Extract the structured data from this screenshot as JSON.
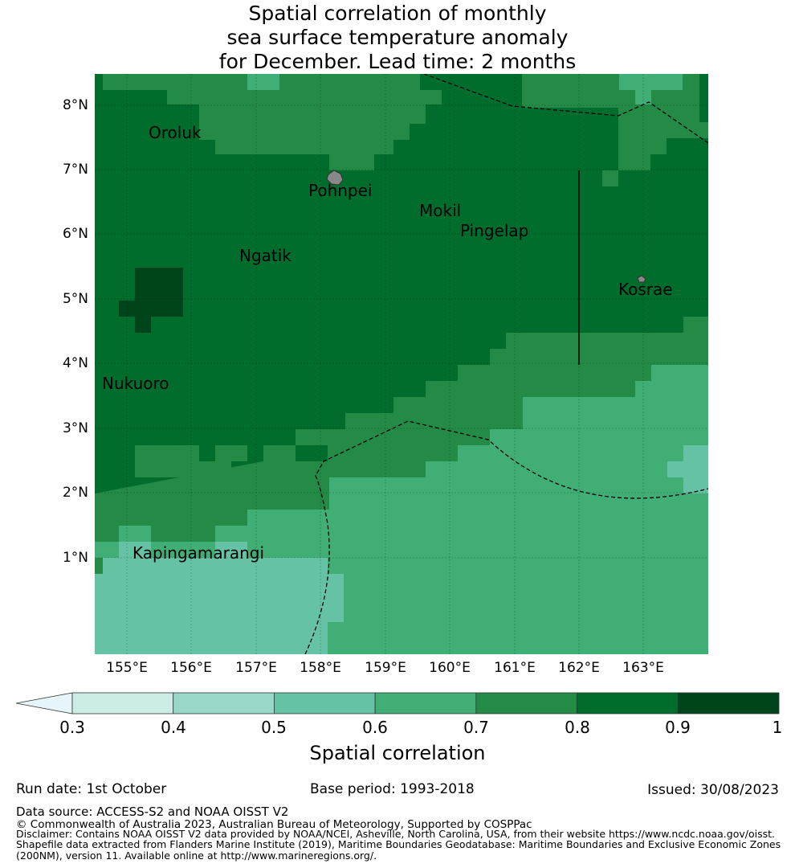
{
  "title": {
    "line1": "Spatial correlation of monthly",
    "line2": "sea surface temperature anomaly",
    "line3": " for December. Lead time: 2 months"
  },
  "axes": {
    "lat_labels": [
      "8°N",
      "7°N",
      "6°N",
      "5°N",
      "4°N",
      "3°N",
      "2°N",
      "1°N"
    ],
    "lon_labels": [
      "155°E",
      "156°E",
      "157°E",
      "158°E",
      "159°E",
      "160°E",
      "161°E",
      "162°E",
      "163°E"
    ]
  },
  "places": {
    "oroluk": "Oroluk",
    "pohnpei": "Pohnpei",
    "mokil": "Mokil",
    "pingelap": "Pingelap",
    "ngatik": "Ngatik",
    "kosrae": "Kosrae",
    "nukuoro": "Nukuoro",
    "kapingamarangi": "Kapingamarangi"
  },
  "colorbar": {
    "label": "Spatial correlation",
    "ticks": [
      "0.3",
      "0.4",
      "0.5",
      "0.6",
      "0.7",
      "0.8",
      "0.9",
      "1"
    ],
    "colors": [
      "#ccece6",
      "#99d8c9",
      "#66c2a4",
      "#41ae76",
      "#238b45",
      "#006d2c",
      "#00441b"
    ],
    "extend_color": "#e5f5f9",
    "bins": [
      0.3,
      0.4,
      0.5,
      0.6,
      0.7,
      0.8,
      0.9,
      1.0
    ]
  },
  "footer": {
    "run_date": "Run date: 1st October",
    "base_period": "Base period: 1993-2018",
    "issued": "Issued: 30/08/2023",
    "data_source": "Data source: ACCESS-S2 and NOAA OISST V2",
    "copyright": "© Commonwealth of Australia 2023, Australian Bureau of Meteorology, Supported by COSPPac",
    "disclaimer1": "Disclaimer: Contains NOAA OISST V2 data provided by NOAA/NCEI, Asheville, North Carolina, USA, from their website https://www.ncdc.noaa.gov/oisst.",
    "disclaimer2": "Shapefile data extracted from Flanders Marine Institute (2019), Maritime Boundaries Geodatabase: Maritime Boundaries and Exclusive Economic Zones",
    "disclaimer3": "(200NM), version 11. Available online at http://www.marineregions.org/."
  },
  "map_data": {
    "lon_range": [
      154.5,
      164.0
    ],
    "lat_range": [
      -0.25,
      8.5
    ],
    "classes": "0=0.5-0.6, 1=0.6-0.7, 2=0.7-0.8, 3=0.8-0.9, 4=0.9-1.0"
  }
}
